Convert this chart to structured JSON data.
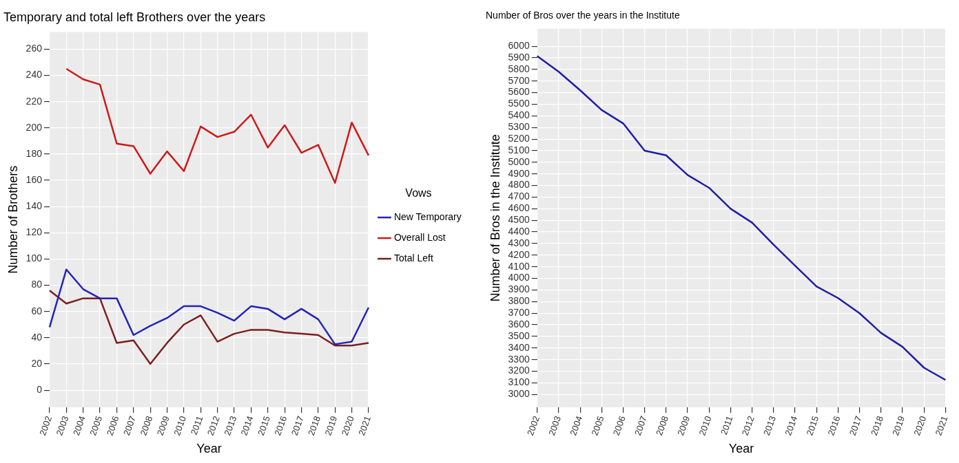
{
  "chart_data": [
    {
      "type": "line",
      "title": "Temporary and total left Brothers over the years",
      "xlabel": "Year",
      "ylabel": "Number of Brothers",
      "legend_title": "Vows",
      "legend": "right",
      "grid": true,
      "marker": "none",
      "line_style": "solid",
      "categories": [
        "2002",
        "2003",
        "2004",
        "2005",
        "2006",
        "2007",
        "2008",
        "2009",
        "2010",
        "2011",
        "2012",
        "2013",
        "2014",
        "2015",
        "2016",
        "2017",
        "2018",
        "2019",
        "2020",
        "2021"
      ],
      "ylim": [
        -13,
        273
      ],
      "yticks": [
        0,
        20,
        40,
        60,
        80,
        100,
        120,
        140,
        160,
        180,
        200,
        220,
        240,
        260
      ],
      "series": [
        {
          "name": "New Temporary",
          "color": "#2323b8",
          "values": [
            48,
            92,
            77,
            70,
            70,
            42,
            49,
            55,
            64,
            64,
            59,
            53,
            64,
            62,
            54,
            62,
            54,
            35,
            37,
            63
          ]
        },
        {
          "name": "Overall Lost",
          "color": "#cc1a1a",
          "values": [
            null,
            245,
            237,
            233,
            188,
            186,
            165,
            182,
            167,
            201,
            193,
            197,
            210,
            185,
            202,
            181,
            187,
            158,
            204,
            179
          ]
        },
        {
          "name": "Total Left",
          "color": "#7a1f1f",
          "values": [
            76,
            66,
            70,
            70,
            36,
            38,
            20,
            36,
            50,
            57,
            37,
            43,
            46,
            46,
            44,
            43,
            42,
            34,
            34,
            36
          ]
        }
      ]
    },
    {
      "type": "line",
      "title": "Number of Bros over the years in the Institute",
      "xlabel": "Year",
      "ylabel": "Number of Bros in the Institute",
      "legend": false,
      "grid": true,
      "marker": "none",
      "line_style": "solid",
      "categories": [
        "2002",
        "2003",
        "2004",
        "2005",
        "2006",
        "2007",
        "2008",
        "2009",
        "2010",
        "2011",
        "2012",
        "2013",
        "2014",
        "2015",
        "2016",
        "2017",
        "2018",
        "2019",
        "2020",
        "2021"
      ],
      "ylim": [
        2890,
        6150
      ],
      "yticks": [
        3000,
        3100,
        3200,
        3300,
        3400,
        3500,
        3600,
        3700,
        3800,
        3900,
        4000,
        4100,
        4200,
        4300,
        4400,
        4500,
        4600,
        4700,
        4800,
        4900,
        5000,
        5100,
        5200,
        5300,
        5400,
        5500,
        5600,
        5700,
        5800,
        5900,
        6000
      ],
      "series": [
        {
          "color": "#1c1caa",
          "values": [
            5915,
            5780,
            5620,
            5450,
            5335,
            5100,
            5060,
            4890,
            4780,
            4600,
            4480,
            4290,
            4110,
            3930,
            3830,
            3700,
            3530,
            3410,
            3230,
            3125
          ]
        }
      ]
    }
  ]
}
